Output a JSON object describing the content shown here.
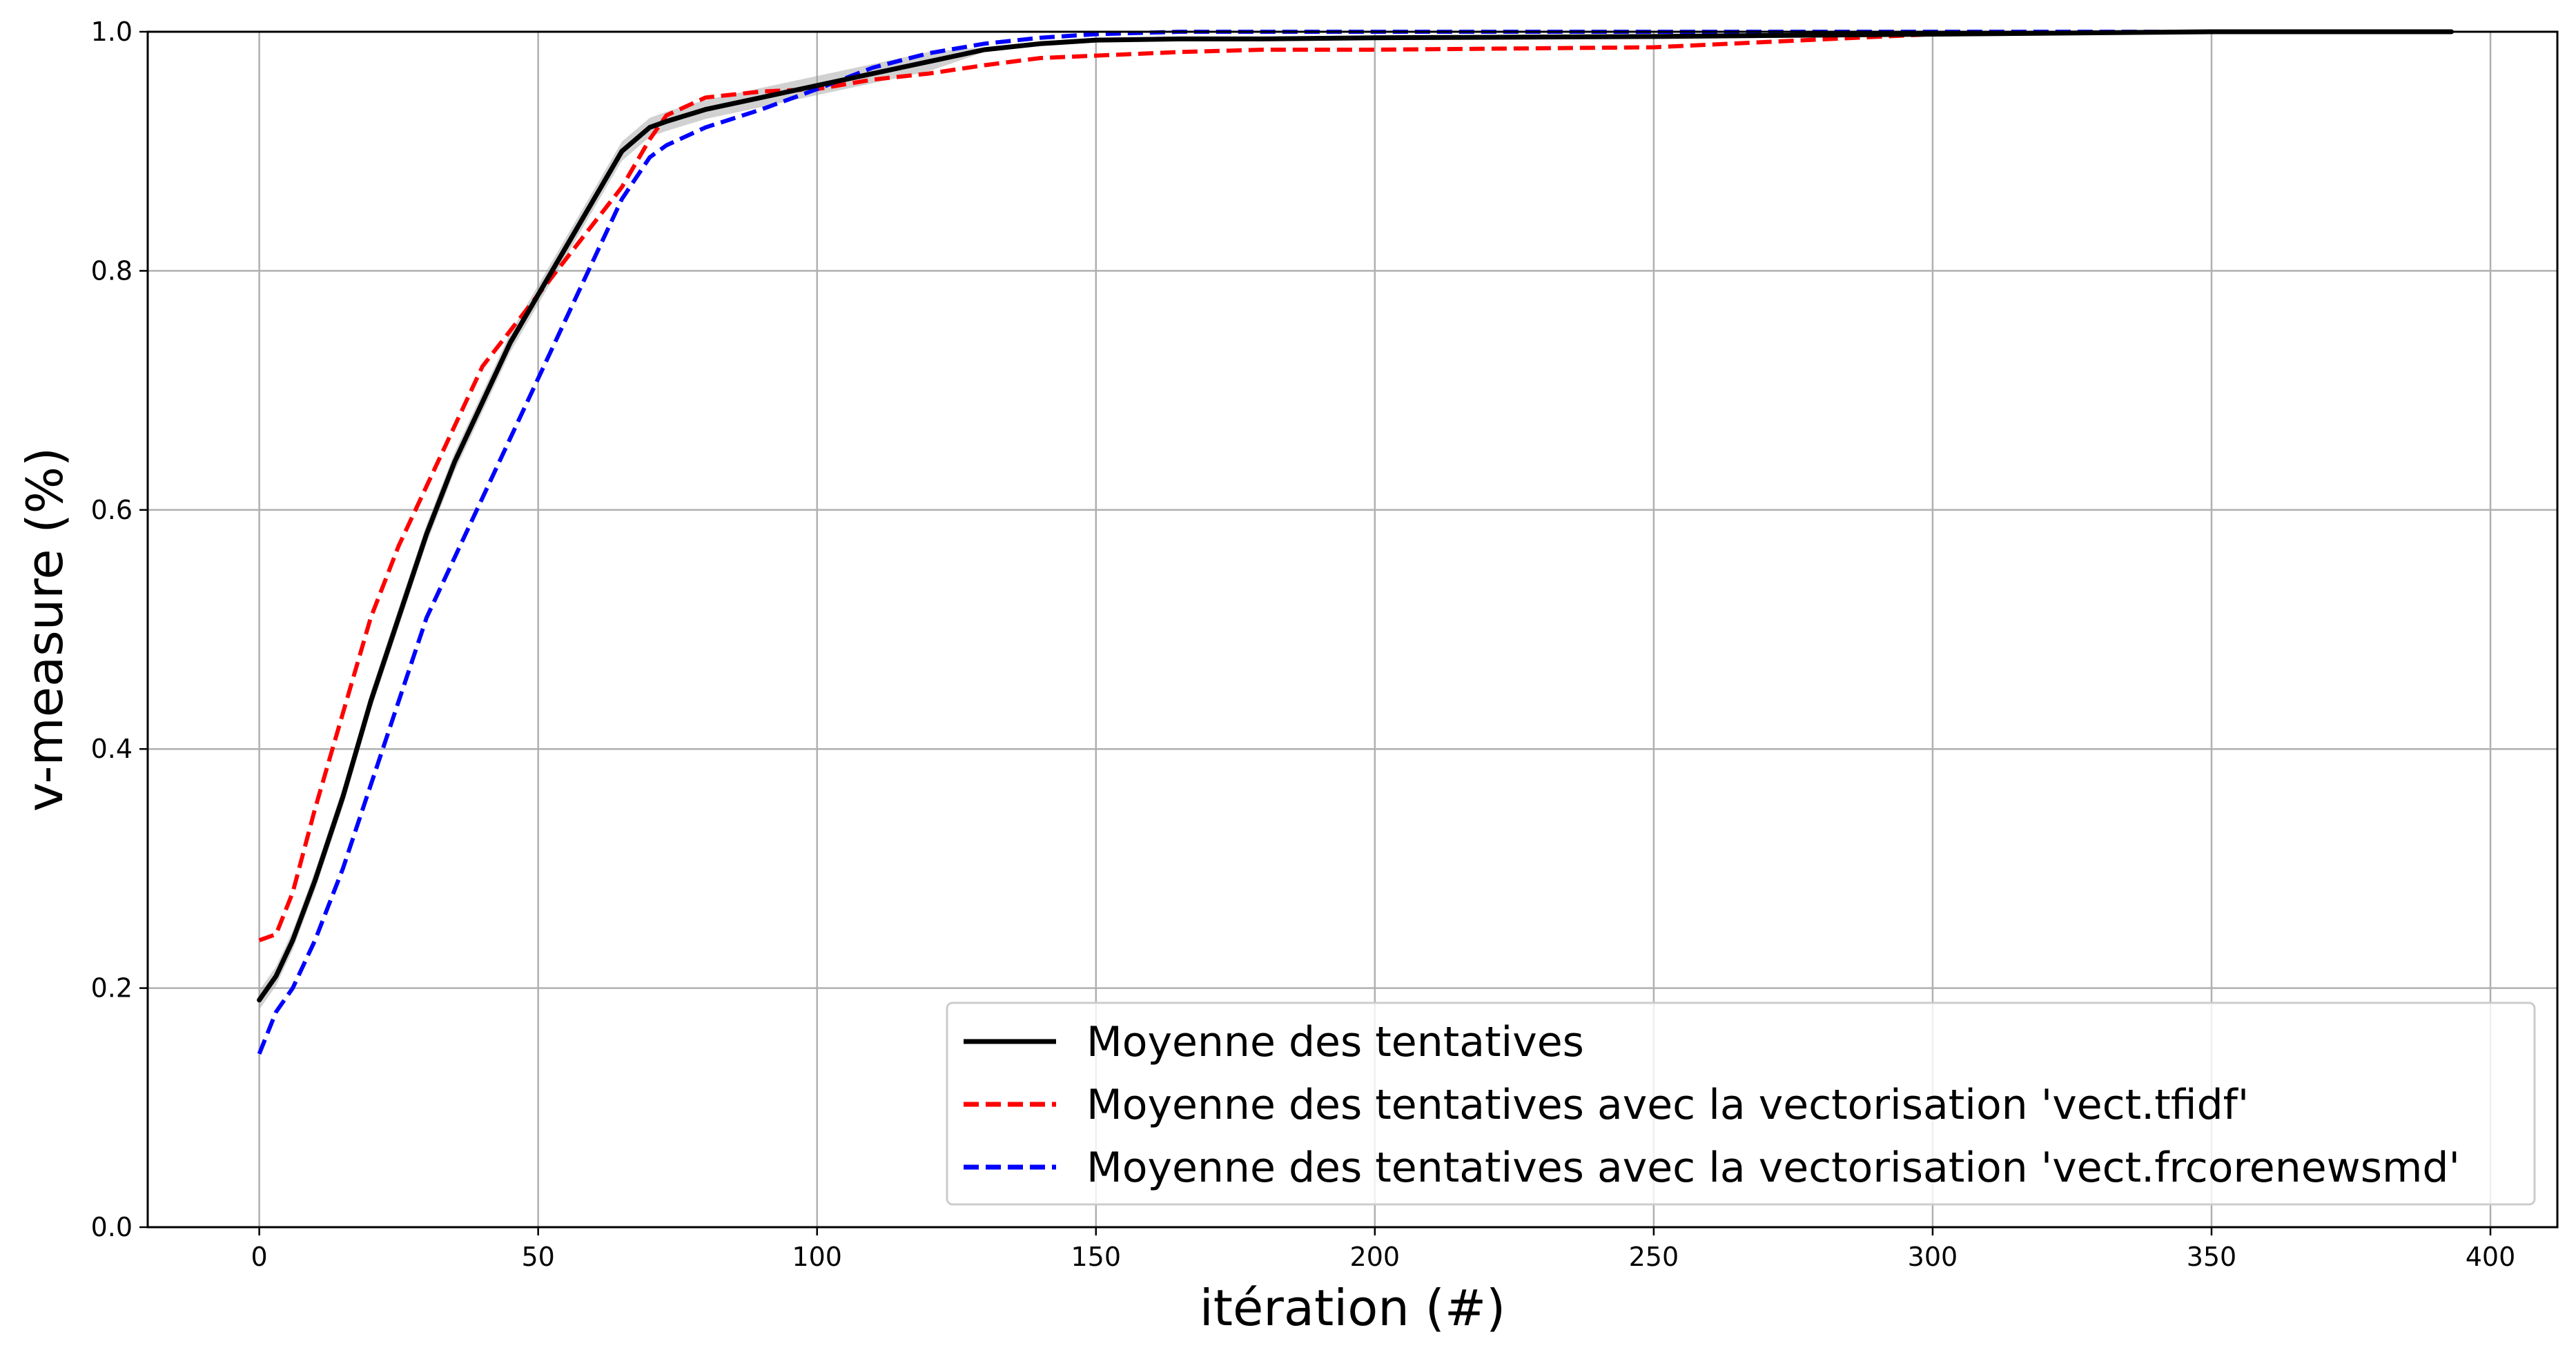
{
  "chart_data": {
    "type": "line",
    "title": "",
    "xlabel": "itération (#)",
    "ylabel": "v-measure (%)",
    "xlim": [
      -20,
      412
    ],
    "ylim": [
      0.0,
      1.0
    ],
    "xticks": [
      "0",
      "50",
      "100",
      "150",
      "200",
      "250",
      "300",
      "350",
      "400"
    ],
    "yticks": [
      "0.0",
      "0.2",
      "0.4",
      "0.6",
      "0.8",
      "1.0"
    ],
    "grid": true,
    "legend_position": "lower-right",
    "series": [
      {
        "name": "Moyenne des tentatives",
        "color": "#000000",
        "style": "solid",
        "x": [
          0,
          3,
          6,
          10,
          15,
          20,
          25,
          30,
          35,
          40,
          45,
          50,
          55,
          60,
          65,
          70,
          73,
          80,
          90,
          100,
          110,
          120,
          130,
          140,
          150,
          165,
          180,
          200,
          250,
          300,
          350,
          393
        ],
        "y": [
          0.19,
          0.21,
          0.24,
          0.29,
          0.36,
          0.44,
          0.51,
          0.58,
          0.64,
          0.69,
          0.74,
          0.78,
          0.82,
          0.86,
          0.9,
          0.92,
          0.925,
          0.935,
          0.945,
          0.955,
          0.965,
          0.975,
          0.985,
          0.99,
          0.993,
          0.994,
          0.994,
          0.995,
          0.996,
          0.998,
          1.0,
          1.0
        ]
      },
      {
        "name": "Moyenne des tentatives avec la vectorisation 'vect.tfidf'",
        "color": "#ff0000",
        "style": "dashed",
        "x": [
          0,
          3,
          6,
          10,
          15,
          20,
          25,
          30,
          35,
          40,
          45,
          50,
          55,
          60,
          65,
          70,
          73,
          80,
          90,
          100,
          110,
          120,
          130,
          140,
          150,
          165,
          180,
          200,
          250,
          300,
          350,
          393
        ],
        "y": [
          0.24,
          0.245,
          0.28,
          0.35,
          0.43,
          0.51,
          0.57,
          0.62,
          0.67,
          0.72,
          0.75,
          0.78,
          0.81,
          0.84,
          0.87,
          0.91,
          0.93,
          0.945,
          0.95,
          0.952,
          0.96,
          0.965,
          0.972,
          0.978,
          0.98,
          0.983,
          0.985,
          0.985,
          0.987,
          0.998,
          1.0,
          1.0
        ]
      },
      {
        "name": "Moyenne des tentatives avec la vectorisation 'vect.frcorenewsmd'",
        "color": "#0000ff",
        "style": "dashed",
        "x": [
          0,
          3,
          6,
          10,
          15,
          20,
          25,
          30,
          35,
          40,
          45,
          50,
          55,
          60,
          65,
          70,
          73,
          80,
          90,
          100,
          110,
          120,
          130,
          140,
          150,
          165,
          180,
          200,
          250,
          300,
          350,
          393
        ],
        "y": [
          0.145,
          0.18,
          0.2,
          0.24,
          0.3,
          0.37,
          0.44,
          0.51,
          0.56,
          0.61,
          0.66,
          0.71,
          0.76,
          0.81,
          0.86,
          0.895,
          0.905,
          0.92,
          0.935,
          0.952,
          0.97,
          0.982,
          0.99,
          0.995,
          0.998,
          1.0,
          1.0,
          1.0,
          1.0,
          1.0,
          1.0,
          1.0
        ]
      }
    ]
  }
}
